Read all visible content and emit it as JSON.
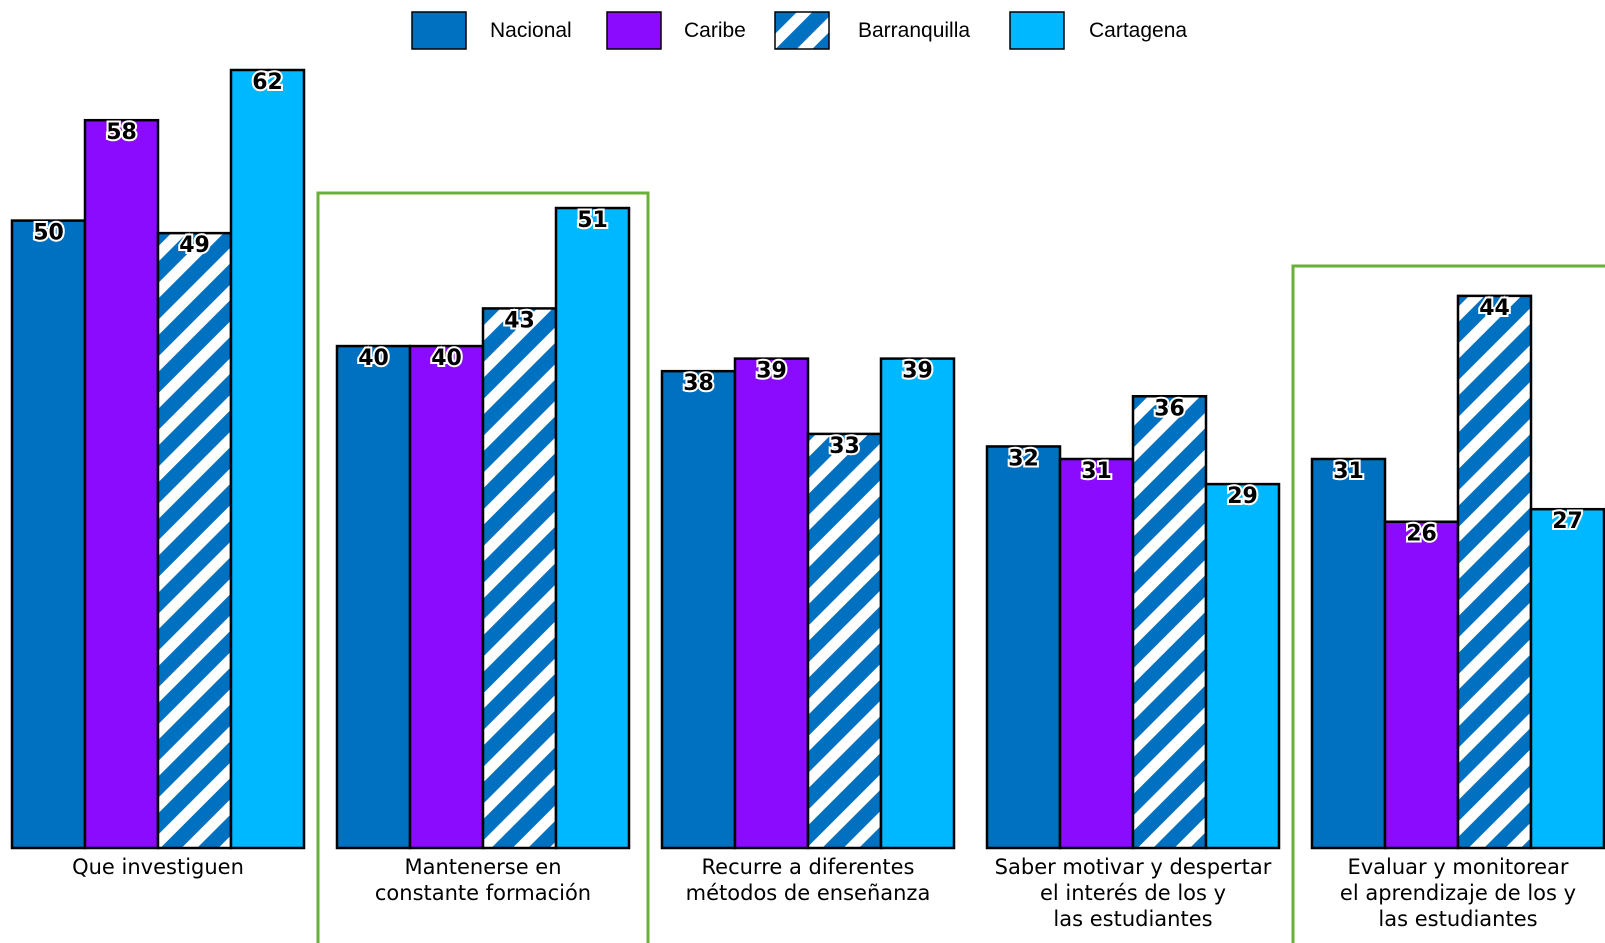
{
  "chart_data": {
    "type": "bar",
    "categories": [
      [
        "Que investiguen"
      ],
      [
        "Mantenerse en",
        "constante formación"
      ],
      [
        "Recurre a diferentes",
        "métodos de enseñanza"
      ],
      [
        "Saber motivar y despertar",
        "el interés de los y",
        "las estudiantes"
      ],
      [
        "Evaluar y monitorear",
        "el aprendizaje de los y",
        "las estudiantes"
      ]
    ],
    "series": [
      {
        "name": "Nacional",
        "color": "#0070C0",
        "pattern": "solid",
        "values": [
          50,
          40,
          38,
          32,
          31
        ]
      },
      {
        "name": "Caribe",
        "color": "#8B0BFF",
        "pattern": "solid",
        "values": [
          58,
          40,
          39,
          31,
          26
        ]
      },
      {
        "name": "Barranquilla",
        "color": "#0070C0",
        "pattern": "diagonal-stripes",
        "values": [
          49,
          43,
          33,
          36,
          44
        ]
      },
      {
        "name": "Cartagena",
        "color": "#00B8FF",
        "pattern": "solid",
        "values": [
          62,
          51,
          39,
          29,
          27
        ]
      }
    ],
    "highlighted_categories": [
      1,
      4
    ],
    "highlight_color": "#6AAF3A",
    "ylim": [
      0,
      62
    ],
    "legend_position": "top",
    "grid": false,
    "title": "",
    "xlabel": "",
    "ylabel": ""
  }
}
